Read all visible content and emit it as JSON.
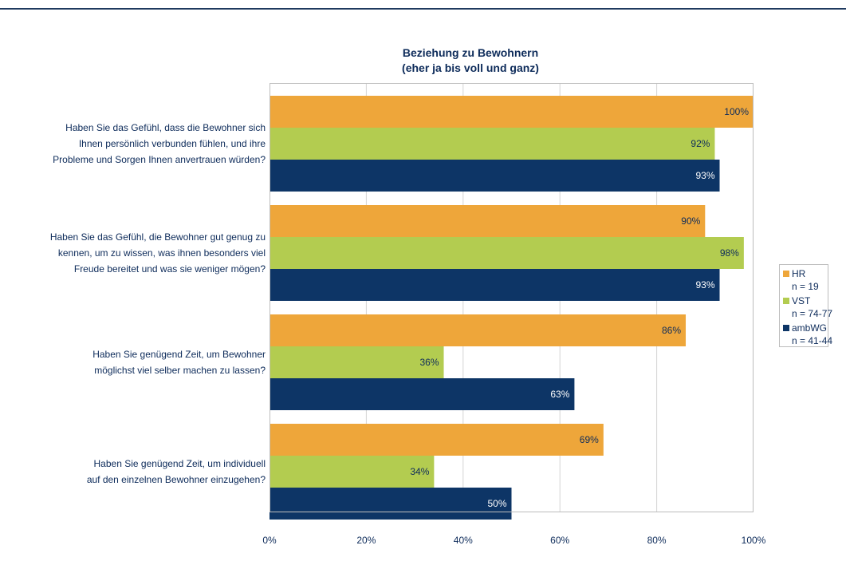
{
  "chart_data": {
    "type": "bar",
    "orientation": "horizontal",
    "title": "Beziehung zu Bewohnern",
    "subtitle": "(eher ja bis voll und ganz)",
    "categories": [
      [
        "Haben Sie das Gefühl, dass die Bewohner sich",
        "Ihnen persönlich verbunden fühlen, und ihre",
        "Probleme und Sorgen Ihnen anvertrauen würden?"
      ],
      [
        "Haben Sie das Gefühl, die Bewohner gut genug zu",
        "kennen, um zu wissen, was ihnen besonders viel",
        "Freude bereitet und was sie weniger mögen?"
      ],
      [
        "Haben Sie genügend Zeit, um Bewohner",
        "möglichst viel selber machen zu lassen?"
      ],
      [
        "Haben Sie genügend Zeit, um individuell",
        "auf den einzelnen Bewohner einzugehen?"
      ]
    ],
    "series": [
      {
        "name": "HR",
        "n": "n = 19",
        "color": "#eea63a",
        "values": [
          100,
          90,
          86,
          69
        ],
        "labels": [
          "100%",
          "90%",
          "86%",
          "69%"
        ]
      },
      {
        "name": "VST",
        "n": "n = 74-77",
        "color": "#b3cc50",
        "values": [
          92,
          98,
          36,
          34
        ],
        "labels": [
          "92%",
          "98%",
          "36%",
          "34%"
        ]
      },
      {
        "name": "ambWG",
        "n": "n = 41-44",
        "color": "#0d3566",
        "values": [
          93,
          93,
          63,
          50
        ],
        "labels": [
          "93%",
          "93%",
          "63%",
          "50%"
        ]
      }
    ],
    "xlim": [
      0,
      100
    ],
    "xticks": [
      "0%",
      "20%",
      "40%",
      "60%",
      "80%",
      "100%"
    ],
    "grid": true,
    "legend": "right"
  }
}
